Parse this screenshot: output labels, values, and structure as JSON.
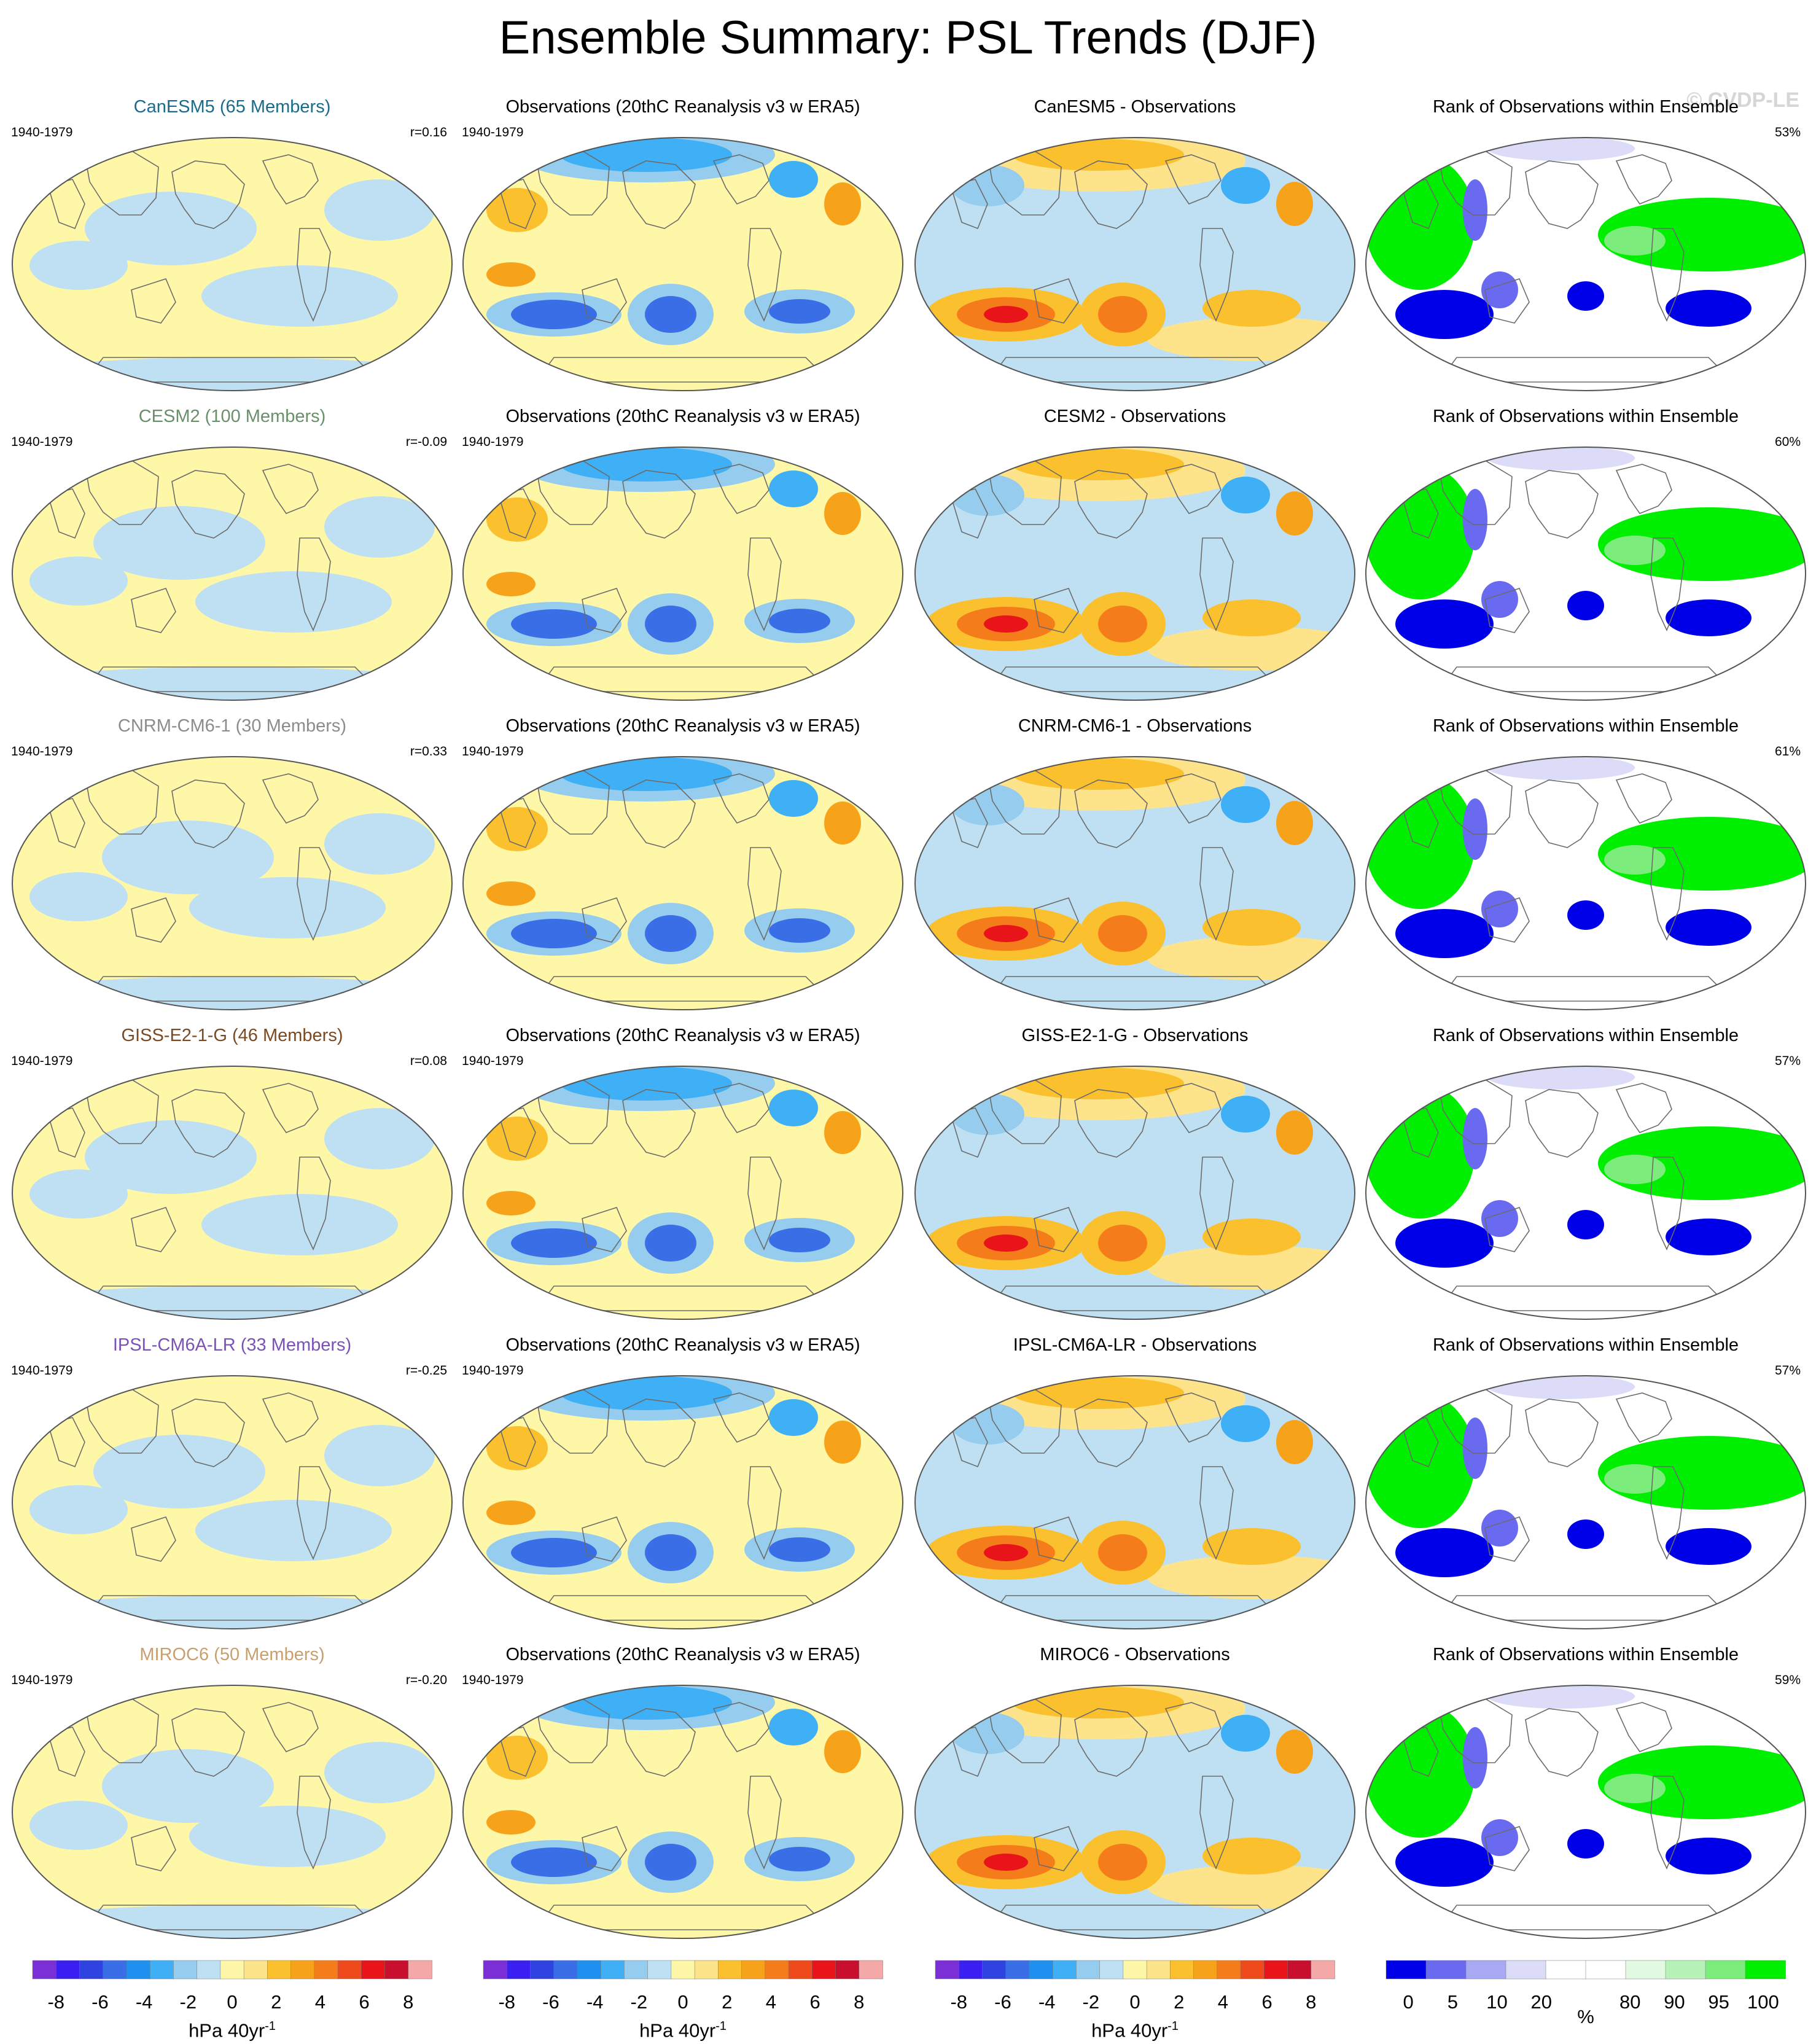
{
  "title": "Ensemble Summary: PSL Trends (DJF)",
  "watermark": "© CVDP-LE",
  "columns": {
    "obs_title": "Observations (20thC Reanalysis v3 w ERA5)",
    "rank_title": "Rank of Observations within Ensemble"
  },
  "rows": [
    {
      "model": "CanESM5 (65 Members)",
      "model_color": "#1a6c8c",
      "period": "1940-1979",
      "r": "r=0.16",
      "diff_title": "CanESM5 - Observations",
      "rank_pct": "53%",
      "obs_period": "1940-1979"
    },
    {
      "model": "CESM2 (100 Members)",
      "model_color": "#6b8e6b",
      "period": "1940-1979",
      "r": "r=-0.09",
      "diff_title": "CESM2 - Observations",
      "rank_pct": "60%",
      "obs_period": "1940-1979"
    },
    {
      "model": "CNRM-CM6-1 (30 Members)",
      "model_color": "#8c8c8c",
      "period": "1940-1979",
      "r": "r=0.33",
      "diff_title": "CNRM-CM6-1 - Observations",
      "rank_pct": "61%",
      "obs_period": "1940-1979"
    },
    {
      "model": "GISS-E2-1-G (46 Members)",
      "model_color": "#7a4a22",
      "period": "1940-1979",
      "r": "r=0.08",
      "diff_title": "GISS-E2-1-G - Observations",
      "rank_pct": "57%",
      "obs_period": "1940-1979"
    },
    {
      "model": "IPSL-CM6A-LR (33 Members)",
      "model_color": "#7b52b8",
      "period": "1940-1979",
      "r": "r=-0.25",
      "diff_title": "IPSL-CM6A-LR - Observations",
      "rank_pct": "57%",
      "obs_period": "1940-1979"
    },
    {
      "model": "MIROC6 (50 Members)",
      "model_color": "#c8a070",
      "period": "1940-1979",
      "r": "r=-0.20",
      "diff_title": "MIROC6 - Observations",
      "rank_pct": "59%",
      "obs_period": "1940-1979"
    }
  ],
  "colorbars": {
    "trend": {
      "ticks": [
        "-8",
        "-6",
        "-4",
        "-2",
        "0",
        "2",
        "4",
        "6",
        "8"
      ],
      "unit": "hPa 40yr",
      "unit_sup": "-1",
      "colors": [
        "#7b2fd6",
        "#3a1ff0",
        "#2e43e0",
        "#3a6ee6",
        "#1e90f0",
        "#3fb0f5",
        "#96cdee",
        "#bfe0f2",
        "#fff7a8",
        "#fde38a",
        "#fbc02d",
        "#f7a21b",
        "#f57c1a",
        "#ef4a1c",
        "#e8141a",
        "#c8102e",
        "#f4a8a8"
      ]
    },
    "rank": {
      "ticks": [
        "0",
        "5",
        "10",
        "20",
        "%",
        "80",
        "90",
        "95",
        "100"
      ],
      "colors": [
        "#0000e8",
        "#6a6af0",
        "#a9a9f3",
        "#dcdcf8",
        "#ffffff",
        "#ffffff",
        "#e2f9e2",
        "#b7f3b7",
        "#7cec7c",
        "#00ee00"
      ]
    }
  }
}
